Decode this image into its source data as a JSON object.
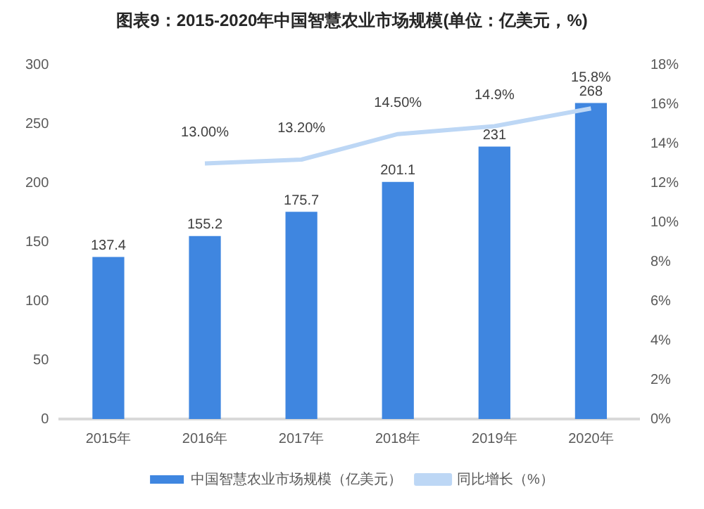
{
  "chart_data": {
    "type": "bar",
    "title": "图表9：2015-2020年中国智慧农业市场规模(单位：亿美元，%)",
    "categories": [
      "2015年",
      "2016年",
      "2017年",
      "2018年",
      "2019年",
      "2020年"
    ],
    "series": [
      {
        "name": "中国智慧农业市场规模（亿美元）",
        "color": "#3f86e0",
        "values": [
          137.4,
          155.2,
          175.7,
          201.1,
          231,
          268
        ],
        "value_labels": [
          "137.4",
          "155.2",
          "175.7",
          "201.1",
          "231",
          "268"
        ]
      },
      {
        "name": "同比增长（%）",
        "type": "line",
        "axis": "y2",
        "color": "#bdd7f5",
        "values": [
          null,
          13.0,
          13.2,
          14.5,
          14.9,
          15.8
        ],
        "value_labels": [
          null,
          "13.00%",
          "13.20%",
          "14.50%",
          "14.9%",
          "15.8%"
        ]
      }
    ],
    "ylim": [
      0,
      300
    ],
    "yticks": [
      0,
      50,
      100,
      150,
      200,
      250,
      300
    ],
    "y2lim": [
      0,
      18
    ],
    "y2ticks": [
      {
        "value": 0,
        "label": "0%"
      },
      {
        "value": 2,
        "label": "2%"
      },
      {
        "value": 4,
        "label": "4%"
      },
      {
        "value": 6,
        "label": "6%"
      },
      {
        "value": 8,
        "label": "8%"
      },
      {
        "value": 10,
        "label": "10%"
      },
      {
        "value": 12,
        "label": "12%"
      },
      {
        "value": 14,
        "label": "14%"
      },
      {
        "value": 16,
        "label": "16%"
      },
      {
        "value": 18,
        "label": "18%"
      }
    ],
    "grid": false,
    "legend": "bottom",
    "marker": "none",
    "line_style": "solid"
  }
}
